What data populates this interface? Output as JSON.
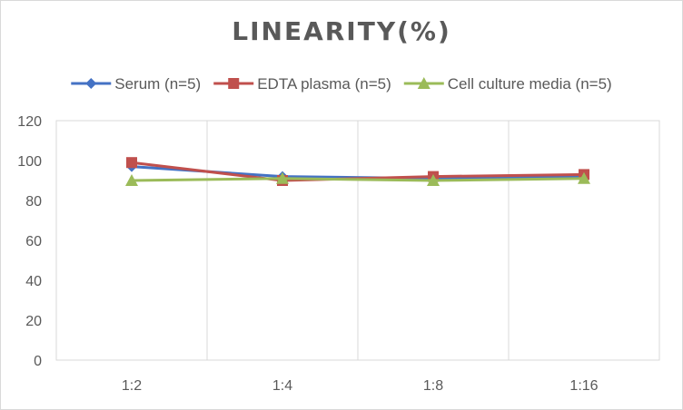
{
  "chart_data": {
    "type": "line",
    "title": "LINEARITY(%)",
    "categories": [
      "1:2",
      "1:4",
      "1:8",
      "1:16"
    ],
    "series": [
      {
        "name": "Serum (n=5)",
        "values": [
          97,
          92,
          91,
          92
        ],
        "color": "#4472c4",
        "marker": "diamond"
      },
      {
        "name": "EDTA plasma (n=5)",
        "values": [
          99,
          90,
          92,
          93
        ],
        "color": "#c0504d",
        "marker": "square"
      },
      {
        "name": "Cell culture media (n=5)",
        "values": [
          90,
          91,
          90,
          91
        ],
        "color": "#9bbb59",
        "marker": "triangle"
      }
    ],
    "yticks": [
      "0",
      "20",
      "40",
      "60",
      "80",
      "100",
      "120"
    ],
    "ylim": [
      0,
      120
    ],
    "grid": "vertical",
    "legend": "top"
  }
}
